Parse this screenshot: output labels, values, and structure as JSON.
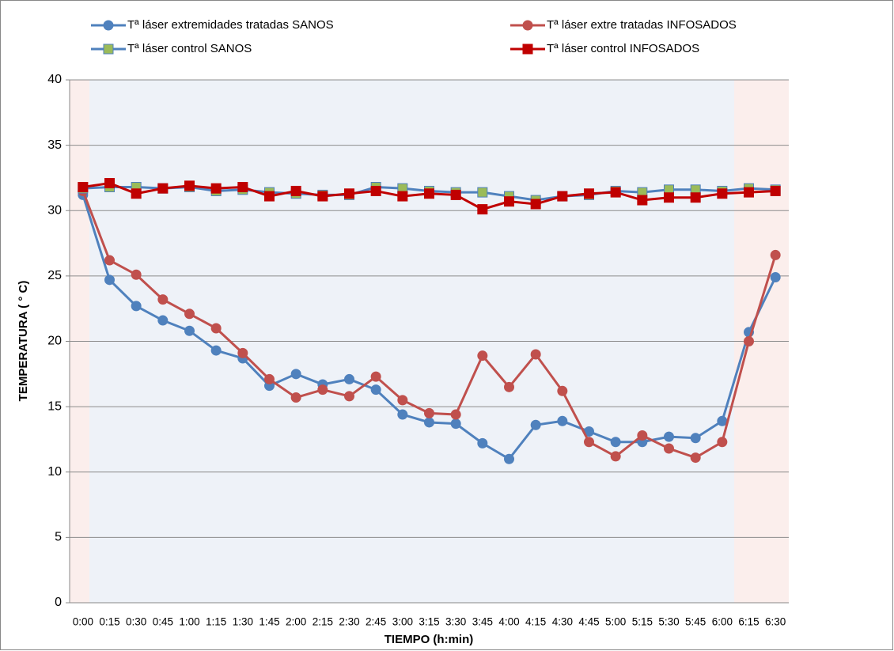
{
  "chart_data": {
    "type": "line",
    "xlabel": "TIEMPO (h:min)",
    "ylabel": "TEMPERATURA ( ° C)",
    "categories": [
      "0:00",
      "0:15",
      "0:30",
      "0:45",
      "1:00",
      "1:15",
      "1:30",
      "1:45",
      "2:00",
      "2:15",
      "2:30",
      "2:45",
      "3:00",
      "3:15",
      "3:30",
      "3:45",
      "4:00",
      "4:15",
      "4:30",
      "4:45",
      "5:00",
      "5:15",
      "5:30",
      "5:45",
      "6:00",
      "6:15",
      "6:30"
    ],
    "series": [
      {
        "name": "Tª láser extremidades tratadas SANOS",
        "color": "#4f81bd",
        "marker": "circle",
        "marker_color": "#4f81bd",
        "values": [
          31.2,
          24.7,
          22.7,
          21.6,
          20.8,
          19.3,
          18.7,
          16.6,
          17.5,
          16.7,
          17.1,
          16.3,
          14.4,
          13.8,
          13.7,
          12.2,
          11.0,
          13.6,
          13.9,
          13.1,
          12.3,
          12.3,
          12.7,
          12.6,
          13.9,
          20.7,
          24.9
        ]
      },
      {
        "name": "Tª láser extre tratadas INFOSADOS",
        "color": "#c0504d",
        "marker": "circle",
        "marker_color": "#c0504d",
        "values": [
          31.5,
          26.2,
          25.1,
          23.2,
          22.1,
          21.0,
          19.1,
          17.1,
          15.7,
          16.3,
          15.8,
          17.3,
          15.5,
          14.5,
          14.4,
          18.9,
          16.5,
          19.0,
          16.2,
          12.3,
          11.2,
          12.8,
          11.8,
          11.1,
          12.3,
          20.0,
          26.6
        ]
      },
      {
        "name": "Tª láser control SANOS",
        "color": "#4f81bd",
        "marker": "square",
        "marker_color": "#9bbb59",
        "values": [
          31.7,
          31.8,
          31.8,
          31.7,
          31.8,
          31.5,
          31.6,
          31.4,
          31.3,
          31.2,
          31.2,
          31.8,
          31.7,
          31.5,
          31.4,
          31.4,
          31.1,
          30.8,
          31.1,
          31.2,
          31.5,
          31.4,
          31.6,
          31.6,
          31.5,
          31.7,
          31.6
        ]
      },
      {
        "name": "Tª láser control INFOSADOS",
        "color": "#c00000",
        "marker": "square",
        "marker_color": "#c00000",
        "values": [
          31.8,
          32.1,
          31.3,
          31.7,
          31.9,
          31.7,
          31.8,
          31.1,
          31.5,
          31.1,
          31.3,
          31.5,
          31.1,
          31.3,
          31.2,
          30.1,
          30.7,
          30.5,
          31.1,
          31.3,
          31.4,
          30.8,
          31.0,
          31.0,
          31.3,
          31.4,
          31.5
        ]
      }
    ],
    "ylim": [
      0,
      40
    ],
    "yticks": [
      0,
      5,
      10,
      15,
      20,
      25,
      30,
      35,
      40
    ],
    "grid": true
  }
}
